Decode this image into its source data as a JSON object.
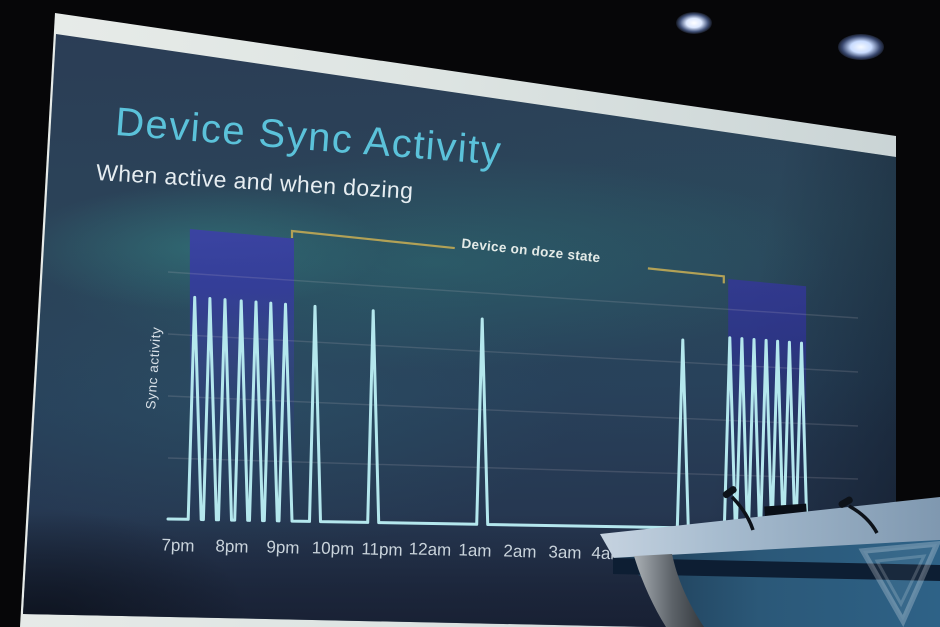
{
  "scene": {
    "description": "photo of a dark conference stage with a large projection screen, presenter podium and two ceiling lights",
    "stage_lights": 2,
    "podium": {
      "microphones": 2,
      "dark_device_on_top": 1
    },
    "watermark": "The Verge inverted-triangle V logo"
  },
  "slide": {
    "title": "Device Sync Activity",
    "subtitle": "When active and when dozing",
    "annotation": "Device on doze state",
    "ylabel": "Sync activity"
  },
  "chart_data": {
    "type": "line",
    "title": "Device Sync Activity",
    "subtitle": "When active and when dozing",
    "ylabel": "Sync activity",
    "xlabel": "",
    "x_tick_labels": [
      "7pm",
      "8pm",
      "9pm",
      "10pm",
      "11pm",
      "12am",
      "1am",
      "2am",
      "3am",
      "4am"
    ],
    "x_axis_note": "time of night starting 7pm; ticks after 4am hidden behind podium",
    "x_axis_hours_after_7pm_range": [
      0,
      14
    ],
    "grid": "four faint horizontal gridlines, flat bright baseline",
    "series": [
      {
        "name": "Sync activity",
        "style": "sharp triangular outline spikes rising from a flat baseline",
        "spikes_hours_after_7pm": [
          0.31,
          0.59,
          0.87,
          1.18,
          1.47,
          1.76,
          2.05,
          2.64,
          3.82,
          6.16,
          10.8,
          11.97,
          12.28,
          12.59,
          12.9,
          13.2,
          13.51,
          13.83
        ],
        "spike_heights_frac": [
          1,
          1,
          1,
          1,
          1,
          1,
          1,
          1,
          1,
          1,
          0.97,
          1,
          1,
          1,
          1,
          1,
          1,
          1
        ],
        "reading": "dense frequent syncs while active (7pm-9pm), rare isolated syncs while dozing (one near 10pm, 11pm, 1am, one early morning), dense again after wake-up"
      }
    ],
    "annotations": [
      {
        "text": "Device on doze state",
        "bracket_hours": [
          2.18,
          11.82
        ],
        "label_gap_hours": [
          5.55,
          9.95
        ]
      }
    ],
    "active_region_highlights_hours": [
      [
        0.22,
        2.22
      ],
      [
        11.93,
        13.95
      ]
    ],
    "legend": "none"
  },
  "colors": {
    "title_accent": "#5bc2da",
    "spike_stroke": "#b4e7ed",
    "doze_bracket": "#b2a156",
    "active_highlight": "#383da0",
    "screen_frame_white": "#dde4e2",
    "slide_background": "#2b4459",
    "podium_top": "#aabfd3",
    "podium_front": "#2b5878",
    "podium_stripe": "#0d1e33"
  }
}
